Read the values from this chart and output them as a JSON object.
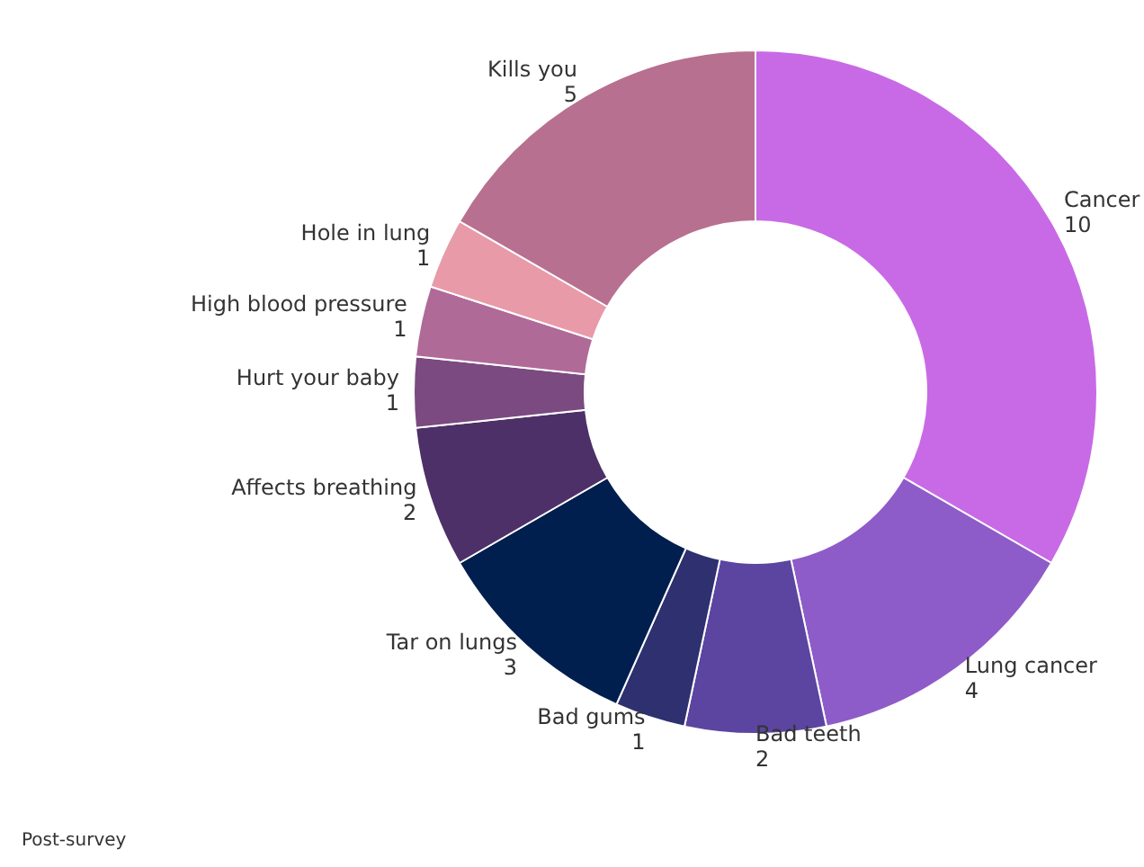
{
  "chart_data": {
    "type": "donut",
    "categories": [
      "Cancer",
      "Lung cancer",
      "Bad teeth",
      "Bad gums",
      "Tar on lungs",
      "Affects breathing",
      "Hurt your baby",
      "High blood pressure",
      "Hole in lung",
      "Kills you"
    ],
    "values": [
      10,
      4,
      2,
      1,
      3,
      2,
      1,
      1,
      1,
      5
    ],
    "colors": [
      "#c86ae6",
      "#8e5cc8",
      "#5b45a0",
      "#2e3070",
      "#001f4e",
      "#4e3068",
      "#7a4a80",
      "#b06a98",
      "#e89aa8",
      "#b87090"
    ],
    "data_labels": true,
    "annotations": [
      "Post-survey"
    ]
  }
}
